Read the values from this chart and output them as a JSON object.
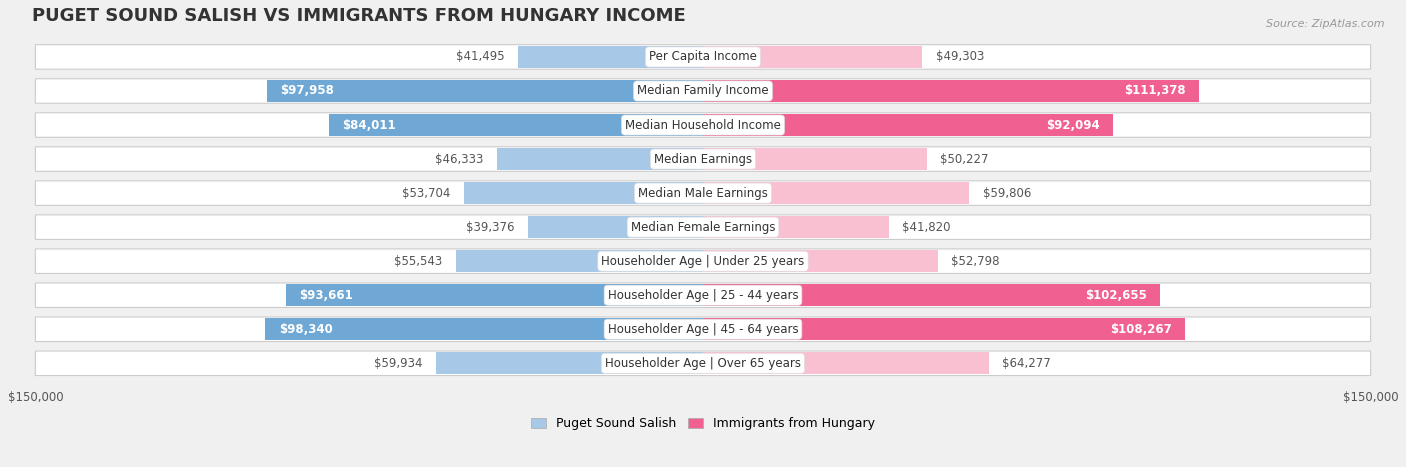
{
  "title": "PUGET SOUND SALISH VS IMMIGRANTS FROM HUNGARY INCOME",
  "source": "Source: ZipAtlas.com",
  "categories": [
    "Per Capita Income",
    "Median Family Income",
    "Median Household Income",
    "Median Earnings",
    "Median Male Earnings",
    "Median Female Earnings",
    "Householder Age | Under 25 years",
    "Householder Age | 25 - 44 years",
    "Householder Age | 45 - 64 years",
    "Householder Age | Over 65 years"
  ],
  "left_values": [
    41495,
    97958,
    84011,
    46333,
    53704,
    39376,
    55543,
    93661,
    98340,
    59934
  ],
  "right_values": [
    49303,
    111378,
    92094,
    50227,
    59806,
    41820,
    52798,
    102655,
    108267,
    64277
  ],
  "left_labels": [
    "$41,495",
    "$97,958",
    "$84,011",
    "$46,333",
    "$53,704",
    "$39,376",
    "$55,543",
    "$93,661",
    "$98,340",
    "$59,934"
  ],
  "right_labels": [
    "$49,303",
    "$111,378",
    "$92,094",
    "$50,227",
    "$59,806",
    "$41,820",
    "$52,798",
    "$102,655",
    "$108,267",
    "$64,277"
  ],
  "left_color_light": "#a8c8e8",
  "left_color_dark": "#6fa8d4",
  "right_color_light": "#f8c0d0",
  "right_color_dark": "#f06090",
  "inside_threshold": 65000,
  "label_color_outside": "#555555",
  "label_color_inside": "#ffffff",
  "legend_left": "Puget Sound Salish",
  "legend_right": "Immigrants from Hungary",
  "max_value": 150000,
  "background_color": "#f0f0f0",
  "row_bg_color": "#ffffff",
  "row_border_color": "#cccccc",
  "title_fontsize": 13,
  "label_fontsize": 8.5,
  "category_fontsize": 8.5,
  "axis_fontsize": 8.5,
  "source_fontsize": 8
}
